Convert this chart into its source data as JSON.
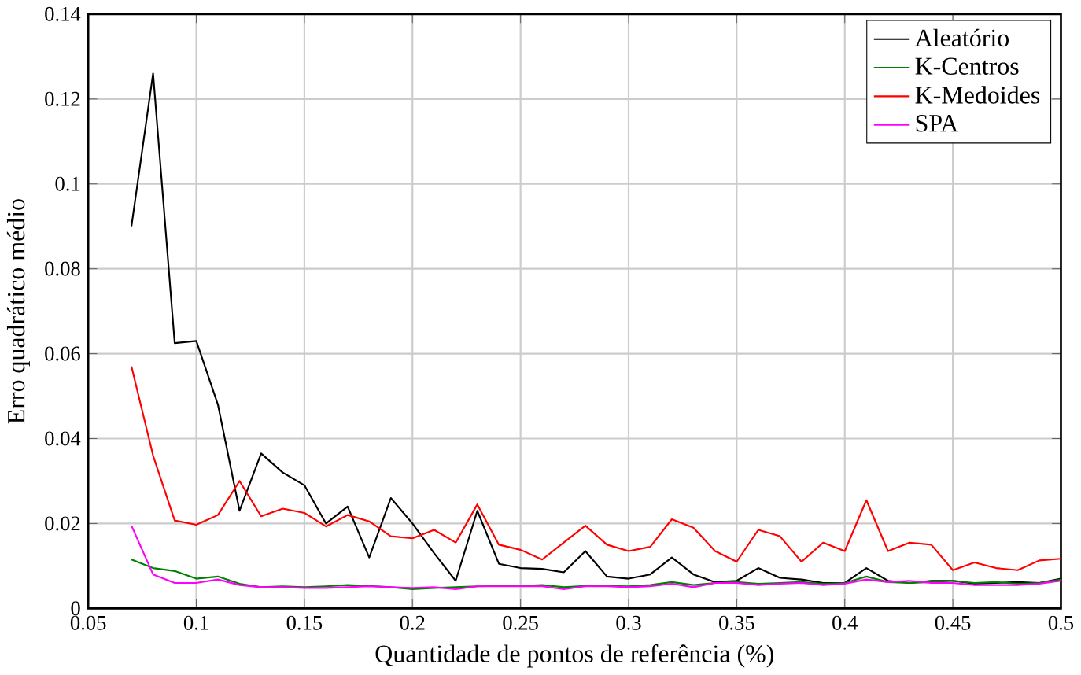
{
  "chart_data": {
    "type": "line",
    "xlabel": "Quantidade de pontos de referência (%)",
    "ylabel": "Erro quadrático médio",
    "x": [
      0.07,
      0.08,
      0.09,
      0.1,
      0.11,
      0.12,
      0.13,
      0.14,
      0.15,
      0.16,
      0.17,
      0.18,
      0.19,
      0.2,
      0.21,
      0.22,
      0.23,
      0.24,
      0.25,
      0.26,
      0.27,
      0.28,
      0.29,
      0.3,
      0.31,
      0.32,
      0.33,
      0.34,
      0.35,
      0.36,
      0.37,
      0.38,
      0.39,
      0.4,
      0.41,
      0.42,
      0.43,
      0.44,
      0.45,
      0.46,
      0.47,
      0.48,
      0.49,
      0.5
    ],
    "series": [
      {
        "name": "Aleatório",
        "color": "#000000",
        "values": [
          0.09,
          0.126,
          0.0625,
          0.063,
          0.048,
          0.023,
          0.0365,
          0.032,
          0.029,
          0.02,
          0.024,
          0.012,
          0.026,
          0.02,
          0.013,
          0.0065,
          0.023,
          0.0105,
          0.0095,
          0.0093,
          0.0085,
          0.0135,
          0.0075,
          0.007,
          0.008,
          0.012,
          0.008,
          0.0062,
          0.0065,
          0.0095,
          0.0072,
          0.0068,
          0.006,
          0.006,
          0.0095,
          0.0065,
          0.006,
          0.0065,
          0.0065,
          0.0058,
          0.006,
          0.0062,
          0.006,
          0.007
        ]
      },
      {
        "name": "K-Centros",
        "color": "#008000",
        "values": [
          0.0115,
          0.0095,
          0.0088,
          0.007,
          0.0075,
          0.0058,
          0.005,
          0.0052,
          0.005,
          0.0052,
          0.0055,
          0.0053,
          0.005,
          0.0045,
          0.0048,
          0.005,
          0.0052,
          0.0053,
          0.0053,
          0.0055,
          0.005,
          0.0053,
          0.0053,
          0.0052,
          0.0055,
          0.0062,
          0.0055,
          0.006,
          0.0062,
          0.0058,
          0.006,
          0.0062,
          0.0058,
          0.006,
          0.0075,
          0.0062,
          0.006,
          0.0062,
          0.0065,
          0.006,
          0.0062,
          0.0058,
          0.006,
          0.0068
        ]
      },
      {
        "name": "K-Medoides",
        "color": "#ff0000",
        "values": [
          0.057,
          0.036,
          0.0207,
          0.0197,
          0.022,
          0.03,
          0.0217,
          0.0235,
          0.0225,
          0.0193,
          0.022,
          0.0205,
          0.017,
          0.0165,
          0.0185,
          0.0155,
          0.0245,
          0.015,
          0.0138,
          0.0115,
          0.0155,
          0.0195,
          0.015,
          0.0135,
          0.0145,
          0.021,
          0.019,
          0.0135,
          0.011,
          0.0185,
          0.017,
          0.011,
          0.0155,
          0.0135,
          0.0255,
          0.0135,
          0.0155,
          0.015,
          0.009,
          0.0108,
          0.0095,
          0.009,
          0.0113,
          0.0117
        ]
      },
      {
        "name": "SPA",
        "color": "#ff00ff",
        "values": [
          0.0195,
          0.008,
          0.006,
          0.006,
          0.0068,
          0.0055,
          0.005,
          0.005,
          0.0048,
          0.0048,
          0.005,
          0.0052,
          0.005,
          0.0048,
          0.005,
          0.0045,
          0.0052,
          0.0052,
          0.0052,
          0.0052,
          0.0045,
          0.0052,
          0.0052,
          0.005,
          0.0052,
          0.0058,
          0.005,
          0.006,
          0.006,
          0.0055,
          0.0058,
          0.006,
          0.0055,
          0.0058,
          0.0068,
          0.0062,
          0.0065,
          0.006,
          0.006,
          0.0055,
          0.0055,
          0.0055,
          0.0058,
          0.0065
        ]
      }
    ],
    "xlim": [
      0.05,
      0.5
    ],
    "ylim": [
      0,
      0.14
    ],
    "xticks": [
      0.05,
      0.1,
      0.15,
      0.2,
      0.25,
      0.3,
      0.35,
      0.4,
      0.45,
      0.5
    ],
    "yticks": [
      0,
      0.02,
      0.04,
      0.06,
      0.08,
      0.1,
      0.12,
      0.14
    ],
    "grid": true,
    "legend": "top right"
  }
}
